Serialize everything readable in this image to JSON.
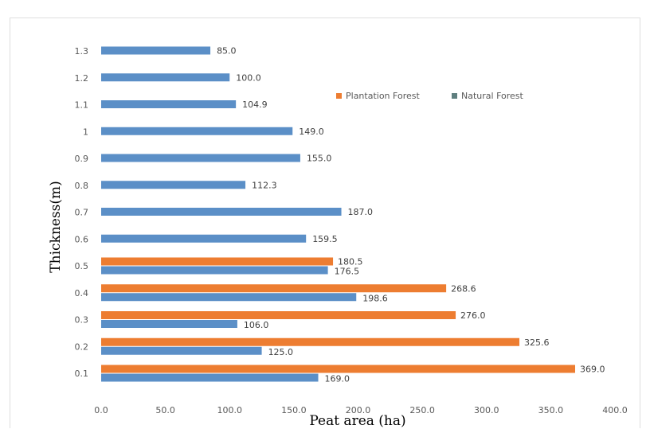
{
  "chart_data": {
    "type": "bar",
    "orientation": "horizontal",
    "xlabel": "Peat area (ha)",
    "ylabel": "Thickness(m)",
    "xlim": [
      0,
      400
    ],
    "x_ticks": [
      "0.0",
      "50.0",
      "100.0",
      "150.0",
      "200.0",
      "250.0",
      "300.0",
      "350.0",
      "400.0"
    ],
    "categories": [
      "0.1",
      "0.2",
      "0.3",
      "0.4",
      "0.5",
      "0.6",
      "0.7",
      "0.8",
      "0.9",
      "1",
      "1.1",
      "1.2",
      "1.3"
    ],
    "series": [
      {
        "name": "Plantation Forest",
        "color": "#ed7d31",
        "values": [
          369.0,
          325.6,
          276.0,
          268.6,
          180.5,
          null,
          null,
          null,
          null,
          null,
          null,
          null,
          null
        ],
        "labels": [
          "369.0",
          "325.6",
          "276.0",
          "268.6",
          "180.5",
          "",
          "",
          "",
          "",
          "",
          "",
          "",
          ""
        ]
      },
      {
        "name": "Natural Forest",
        "color": "#5b8fc7",
        "legend_color": "#5f7f7f",
        "values": [
          169.0,
          125.0,
          106.0,
          198.6,
          176.5,
          159.5,
          187.0,
          112.3,
          155.0,
          149.0,
          104.9,
          100.0,
          85.0
        ],
        "labels": [
          "169.0",
          "125.0",
          "106.0",
          "198.6",
          "176.5",
          "159.5",
          "187.0",
          "112.3",
          "155.0",
          "149.0",
          "104.9",
          "100.0",
          "85.0"
        ]
      }
    ],
    "grid": false,
    "legend_position": "top-right"
  }
}
